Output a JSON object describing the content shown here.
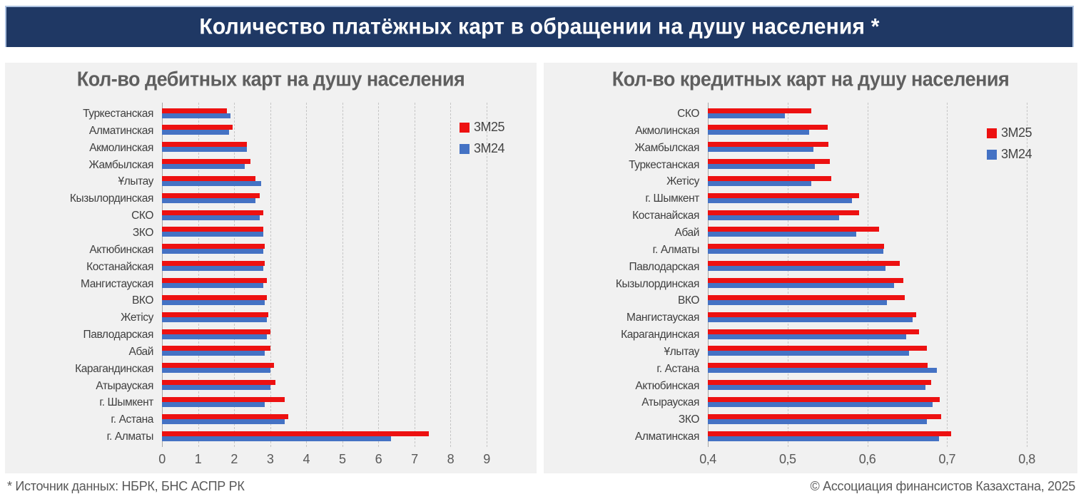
{
  "banner": {
    "title": "Количество платёжных карт в обращении на душу населения *"
  },
  "footer": {
    "source": "* Источник данных: НБРК, БНС АСПР РК",
    "copyright": "© Ассоциация финансистов Казахстана, 2025"
  },
  "colors": {
    "banner_bg": "#1F3864",
    "banner_border": "#AEC3E1",
    "panel_bg": "#F1F1F1",
    "series_3m25": "#ED1111",
    "series_3m24": "#4472C4",
    "grid": "#C6C6C6",
    "axis_line": "#A6A6A6",
    "title_text": "#5F5F5F",
    "label_text": "#3F3F3F",
    "tick_text": "#595959"
  },
  "legend": {
    "items": [
      {
        "label": "3М25",
        "color": "#ED1111"
      },
      {
        "label": "3М24",
        "color": "#4472C4"
      }
    ]
  },
  "chart_data": [
    {
      "type": "bar",
      "orientation": "horizontal",
      "title": "Кол-во дебитных карт на душу населения",
      "xlabel": "",
      "ylabel": "",
      "xlim": [
        0,
        9
      ],
      "xticks": [
        0,
        1,
        2,
        3,
        4,
        5,
        6,
        7,
        8,
        9
      ],
      "tick_labels": [
        "0",
        "1",
        "2",
        "3",
        "4",
        "5",
        "6",
        "7",
        "8",
        "9"
      ],
      "grid": true,
      "legend_position": "upper right",
      "categories": [
        "Туркестанская",
        "Алматинская",
        "Акмолинская",
        "Жамбылская",
        "Ұлытау",
        "Кызылординская",
        "СКО",
        "ЗКО",
        "Актюбинская",
        "Костанайская",
        "Мангистауская",
        "ВКО",
        "Жетісу",
        "Павлодарская",
        "Абай",
        "Карагандинская",
        "Атырауская",
        "г. Шымкент",
        "г. Астана",
        "г. Алматы"
      ],
      "series": [
        {
          "name": "3М25",
          "values": [
            1.8,
            1.95,
            2.35,
            2.45,
            2.6,
            2.7,
            2.8,
            2.8,
            2.85,
            2.85,
            2.9,
            2.9,
            2.95,
            3.0,
            3.0,
            3.1,
            3.15,
            3.4,
            3.5,
            7.4
          ]
        },
        {
          "name": "3М24",
          "values": [
            1.9,
            1.85,
            2.35,
            2.3,
            2.75,
            2.6,
            2.7,
            2.8,
            2.8,
            2.8,
            2.8,
            2.85,
            2.9,
            2.9,
            2.85,
            3.0,
            3.0,
            2.85,
            3.4,
            6.35
          ]
        }
      ]
    },
    {
      "type": "bar",
      "orientation": "horizontal",
      "title": "Кол-во кредитных карт на душу населения",
      "xlabel": "",
      "ylabel": "",
      "xlim": [
        0.4,
        0.8
      ],
      "xticks": [
        0.4,
        0.5,
        0.6,
        0.7,
        0.8
      ],
      "tick_labels": [
        "0,4",
        "0,5",
        "0,6",
        "0,7",
        "0,8"
      ],
      "grid": true,
      "legend_position": "upper right",
      "categories": [
        "СКО",
        "Акмолинская",
        "Жамбылская",
        "Туркестанская",
        "Жетісу",
        "г. Шымкент",
        "Костанайская",
        "Абай",
        "г. Алматы",
        "Павлодарская",
        "Кызылординская",
        "ВКО",
        "Мангистауская",
        "Карагандинская",
        "Ұлытау",
        "г. Астана",
        "Актюбинская",
        "Атырауская",
        "ЗКО",
        "Алматинская"
      ],
      "series": [
        {
          "name": "3М25",
          "values": [
            0.53,
            0.55,
            0.551,
            0.553,
            0.555,
            0.59,
            0.59,
            0.615,
            0.621,
            0.641,
            0.645,
            0.647,
            0.661,
            0.665,
            0.675,
            0.676,
            0.68,
            0.691,
            0.693,
            0.705
          ]
        },
        {
          "name": "3М24",
          "values": [
            0.497,
            0.527,
            0.532,
            0.534,
            0.53,
            0.581,
            0.565,
            0.586,
            0.62,
            0.623,
            0.634,
            0.625,
            0.657,
            0.649,
            0.652,
            0.687,
            0.673,
            0.682,
            0.675,
            0.69
          ]
        }
      ]
    }
  ]
}
